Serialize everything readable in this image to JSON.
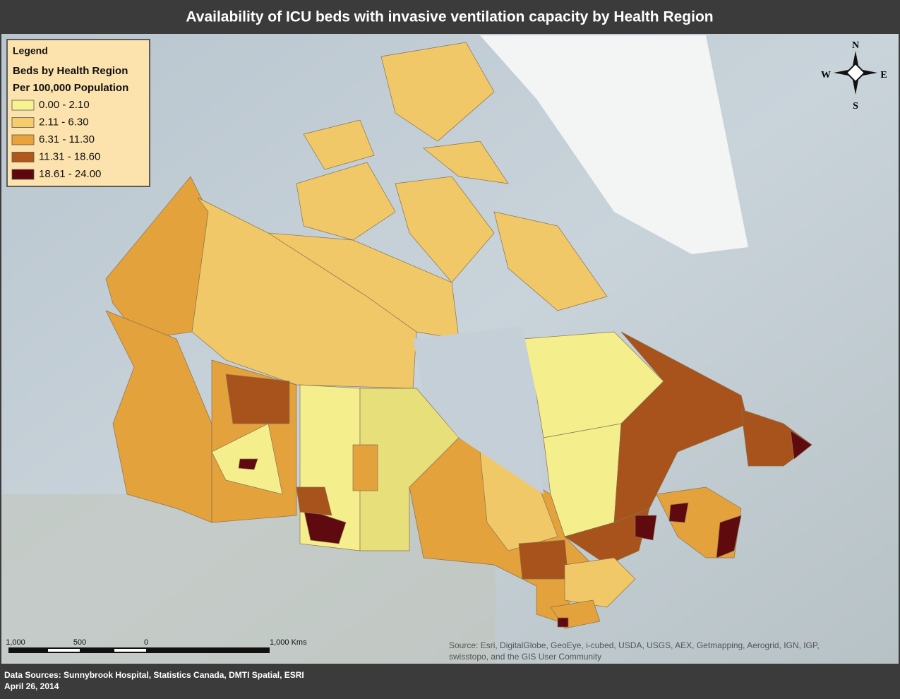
{
  "title": "Availability of ICU beds with invasive ventilation capacity by Health Region",
  "legend": {
    "heading": "Legend",
    "subtitle": [
      "Beds by Health Region",
      "Per 100,000 Population"
    ],
    "classes": [
      {
        "label": "0.00 - 2.10",
        "color": "#f7f48f"
      },
      {
        "label": "2.11 - 6.30",
        "color": "#f5cd6a"
      },
      {
        "label": "6.31 - 11.30",
        "color": "#e9a33a"
      },
      {
        "label": "11.31 - 18.60",
        "color": "#b0581b"
      },
      {
        "label": "18.61 - 24.00",
        "color": "#5e060b"
      }
    ]
  },
  "compass": {
    "n": "N",
    "s": "S",
    "e": "E",
    "w": "W"
  },
  "scale_bar": {
    "labels": [
      "1,000",
      "500",
      "0",
      "1,000 Kms"
    ]
  },
  "source": [
    "Source: Esri, DigitalGlobe, GeoEye, i-cubed, USDA, USGS, AEX, Getmapping, Aerogrid, IGN, IGP,",
    "swisstopo, and the GIS User Community"
  ],
  "footer": {
    "sources": "Data Sources: Sunnybrook Hospital, Statistics Canada, DMTI Spatial, ESRI",
    "date": "April 26, 2014"
  }
}
